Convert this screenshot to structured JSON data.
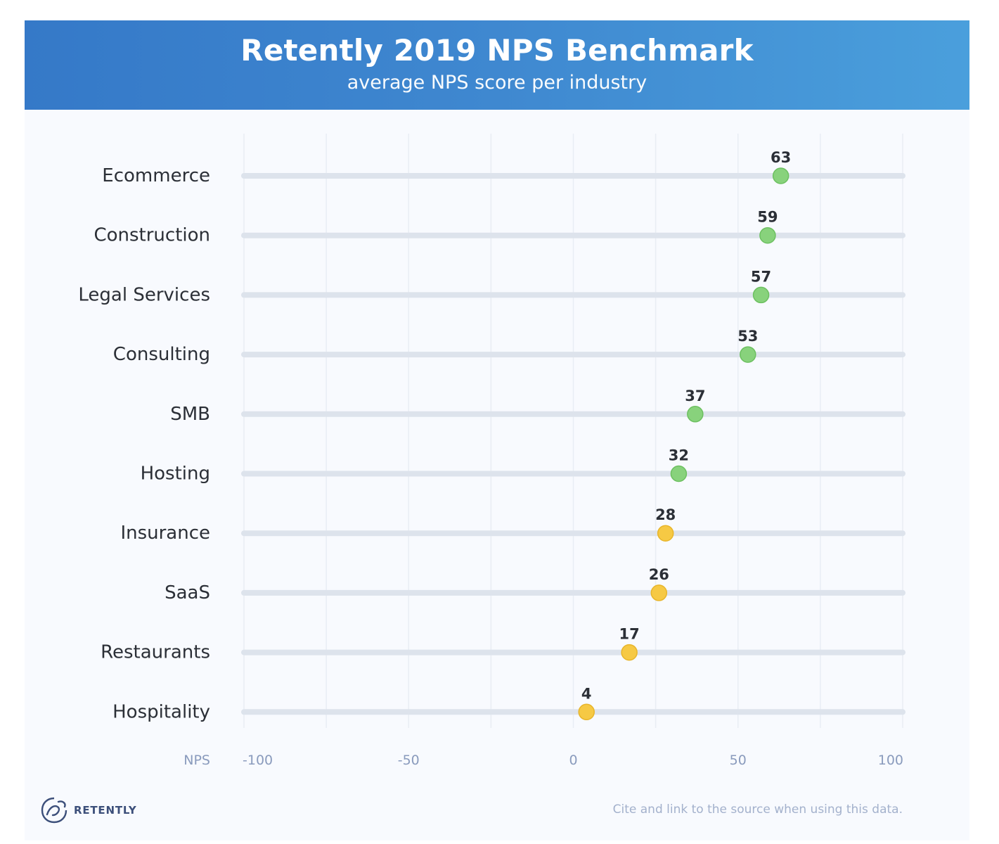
{
  "header": {
    "title": "Retently 2019 NPS Benchmark",
    "subtitle": "average NPS score per industry"
  },
  "chart_data": {
    "type": "scatter",
    "title": "Retently 2019 NPS Benchmark",
    "subtitle": "average NPS score per industry",
    "xlabel": "NPS",
    "xlim": [
      -100,
      100
    ],
    "xticks": [
      "-100",
      "-50",
      "0",
      "50",
      "100"
    ],
    "xtick_values": [
      -100,
      -50,
      0,
      50,
      100
    ],
    "grid": true,
    "categories": [
      "Ecommerce",
      "Construction",
      "Legal Services",
      "Consulting",
      "SMB",
      "Hosting",
      "Insurance",
      "SaaS",
      "Restaurants",
      "Hospitality"
    ],
    "values": [
      63,
      59,
      57,
      53,
      37,
      32,
      28,
      26,
      17,
      4
    ],
    "value_labels": [
      "63",
      "59",
      "57",
      "53",
      "37",
      "32",
      "28",
      "26",
      "17",
      "4"
    ],
    "colors": {
      "green": "#88d27c",
      "green_stroke": "#6cc060",
      "yellow": "#f6c944",
      "yellow_stroke": "#e8b52a",
      "track": "#dde3ec",
      "grid": "#e9edf4"
    },
    "point_colors": [
      "green",
      "green",
      "green",
      "green",
      "green",
      "green",
      "yellow",
      "yellow",
      "yellow",
      "yellow"
    ]
  },
  "footer": {
    "logo_text": "RETENTLY",
    "logo_icon": "retently-logo-icon",
    "cite": "Cite and link to the source when using this data."
  }
}
